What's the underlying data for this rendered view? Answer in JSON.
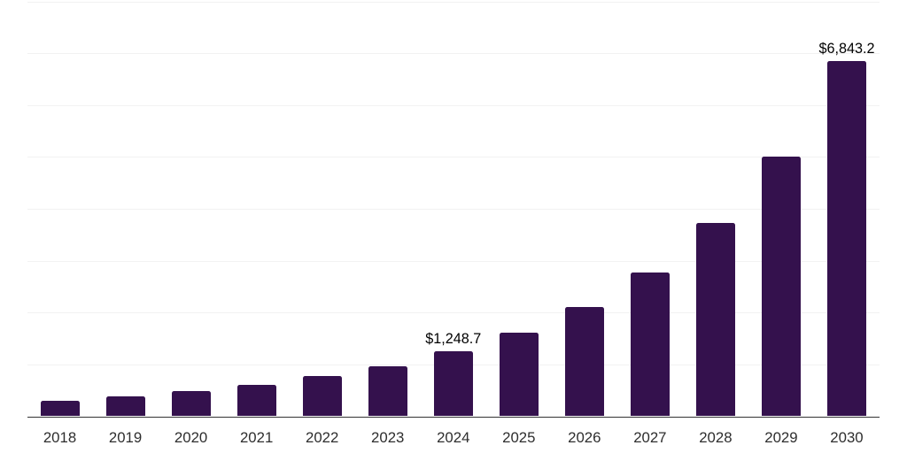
{
  "chart_data": {
    "type": "bar",
    "categories": [
      "2018",
      "2019",
      "2020",
      "2021",
      "2022",
      "2023",
      "2024",
      "2025",
      "2026",
      "2027",
      "2028",
      "2029",
      "2030"
    ],
    "values": [
      292,
      385,
      482,
      605,
      774,
      967,
      1248.7,
      1614,
      2113,
      2774,
      3725,
      5010,
      6843.2
    ],
    "data_labels": [
      {
        "category": "2024",
        "text": "$1,248.7"
      },
      {
        "category": "2030",
        "text": "$6,843.2"
      }
    ],
    "title": "",
    "xlabel": "",
    "ylabel": "",
    "ylim": [
      0,
      8000
    ],
    "grid_step": 1000,
    "grid": true,
    "legend": false,
    "colors": {
      "bar": "#34114d",
      "gridline": "#f2f2f2",
      "axis": "#333333",
      "tick_label": "#2e2e2e",
      "data_label": "#000000",
      "background": "#ffffff"
    }
  }
}
